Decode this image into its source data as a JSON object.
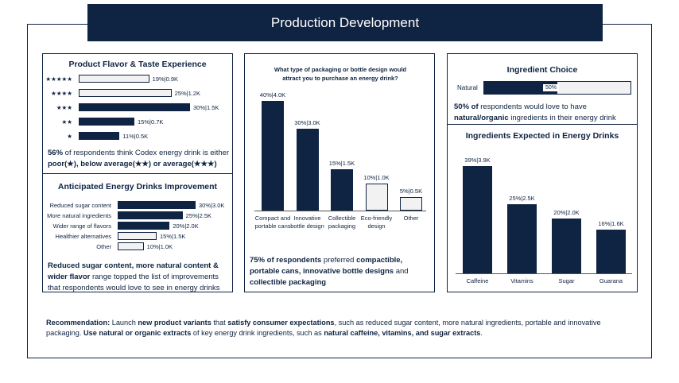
{
  "title": "Production Development",
  "colors": {
    "navy": "#0f2342",
    "light": "#f2f2f2",
    "white": "#ffffff"
  },
  "flavor": {
    "title": "Product Flavor & Taste Experience",
    "chart_data": {
      "type": "bar",
      "orientation": "horizontal",
      "categories": [
        "★★★★★",
        "★★★★",
        "★★★",
        "★★",
        "★"
      ],
      "values": [
        19,
        25,
        30,
        15,
        11
      ],
      "labels": [
        "19%|0.9K",
        "25%|1.2K",
        "30%|1.5K",
        "15%|0.7K",
        "11%|0.5K"
      ],
      "highlight": [
        false,
        false,
        true,
        true,
        true
      ]
    },
    "note_pct": "56%",
    "note_text": " of respondents think Codex energy drink is either",
    "note_bold": "poor(★), below average(★★) or average(★★★)"
  },
  "improvement": {
    "title": "Anticipated Energy Drinks Improvement",
    "chart_data": {
      "type": "bar",
      "orientation": "horizontal",
      "categories": [
        "Reduced sugar content",
        "More natural ingredients",
        "Wider range of flavors",
        "Healthier alternatives",
        "Other"
      ],
      "values": [
        30,
        25,
        20,
        15,
        10
      ],
      "labels": [
        "30%|3.0K",
        "25%|2.5K",
        "20%|2.0K",
        "15%|1.5K",
        "10%|1.0K"
      ],
      "highlight": [
        true,
        true,
        true,
        false,
        false
      ]
    },
    "note_bold1": "Reduced sugar content, more natural content &",
    "note_bold2": "wider flavor",
    "note_text": " range topped the list of improvements that respondents would love to see in energy drinks"
  },
  "packaging": {
    "question": "What type of packaging or bottle design would attract you to purchase an energy drink?",
    "chart_data": {
      "type": "bar",
      "categories": [
        "Compact and portable cans",
        "Innovative bottle design",
        "Collectible packaging",
        "Eco-friendly design",
        "Other"
      ],
      "values": [
        40,
        30,
        15,
        10,
        5
      ],
      "labels": [
        "40%|4.0K",
        "30%|3.0K",
        "15%|1.5K",
        "10%|1.0K",
        "5%|0.5K"
      ],
      "highlight": [
        true,
        true,
        true,
        false,
        false
      ],
      "ylim": [
        0,
        40
      ]
    },
    "note_bold1": "75% of respondents",
    "note_text1": " preferred ",
    "note_bold2": "compactible, portable cans, innovative bottle designs",
    "note_text2": " and ",
    "note_bold3": "collectible packaging"
  },
  "ingredient_choice": {
    "title": "Ingredient Choice",
    "bar_label": "Natural",
    "value": 50,
    "value_label": "50%",
    "note_bold1": "50% of",
    "note_text1": " respondents would love to have",
    "note_bold2": "natural/organic",
    "note_text2": " ingredients in their energy drink"
  },
  "ingredients": {
    "title": "Ingredients Expected in Energy Drinks",
    "chart_data": {
      "type": "bar",
      "categories": [
        "Caffeine",
        "Vitamins",
        "Sugar",
        "Guarana"
      ],
      "values": [
        39,
        25,
        20,
        16
      ],
      "labels": [
        "39%|3.9K",
        "25%|2.5K",
        "20%|2.0K",
        "16%|1.6K"
      ],
      "ylim": [
        0,
        39
      ]
    }
  },
  "recommendation": {
    "label": "Recommendation:",
    "t1": " Launch ",
    "b1": "new product variants",
    "t2": " that ",
    "b2": "satisfy consumer expectations",
    "t3": ", such as reduced sugar content, more natural ingredients, portable and innovative packaging. ",
    "b3": "Use natural or organic extracts",
    "t4": " of key energy drink ingredients, such as ",
    "b4": "natural caffeine, vitamins, and sugar extracts",
    "t5": "."
  }
}
